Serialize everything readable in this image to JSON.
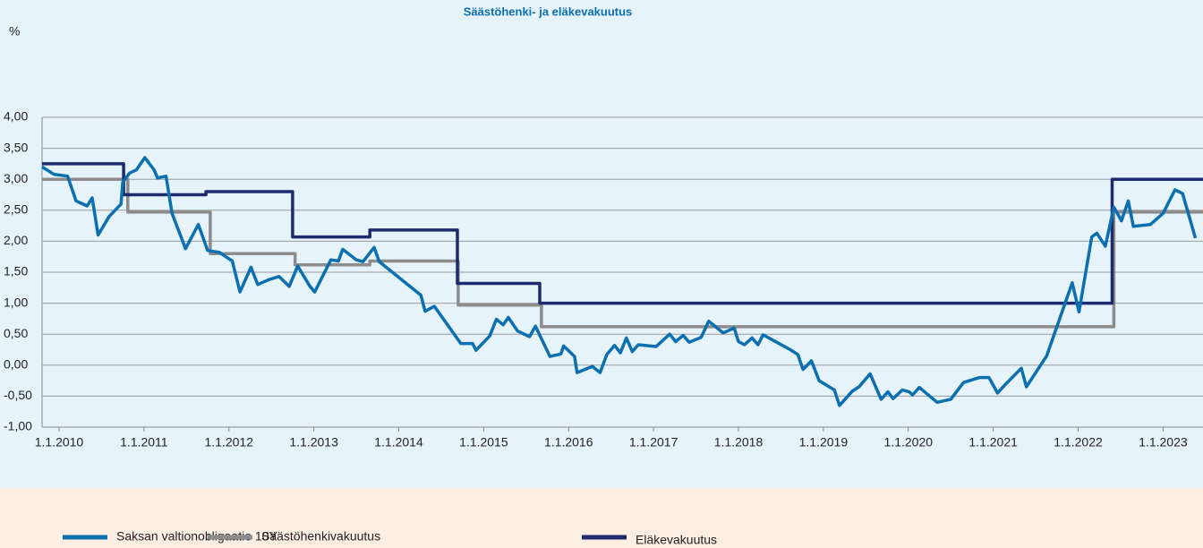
{
  "chart_data": {
    "type": "line",
    "title": "Säästöhenki- ja eläkevakuutus",
    "y_label": "%",
    "ylim": [
      -1,
      4
    ],
    "yticks": [
      {
        "value": 4,
        "label": "4,00"
      },
      {
        "value": 3.5,
        "label": "3,50"
      },
      {
        "value": 3,
        "label": "3,00"
      },
      {
        "value": 2.5,
        "label": "2,50"
      },
      {
        "value": 2,
        "label": "2,00"
      },
      {
        "value": 1.5,
        "label": "1,50"
      },
      {
        "value": 1,
        "label": "1,00"
      },
      {
        "value": 0.5,
        "label": "0,50"
      },
      {
        "value": 0,
        "label": "0,00"
      },
      {
        "value": -0.5,
        "label": "-0,50"
      },
      {
        "value": -1,
        "label": "-1,00"
      }
    ],
    "xlim": [
      2009.8,
      2023.47
    ],
    "xticks": [
      {
        "value": 2010,
        "label": "1.1.2010"
      },
      {
        "value": 2011,
        "label": "1.1.2011"
      },
      {
        "value": 2012,
        "label": "1.1.2012"
      },
      {
        "value": 2013,
        "label": "1.1.2013"
      },
      {
        "value": 2014,
        "label": "1.1.2014"
      },
      {
        "value": 2015,
        "label": "1.1.2015"
      },
      {
        "value": 2016,
        "label": "1.1.2016"
      },
      {
        "value": 2017,
        "label": "1.1.2017"
      },
      {
        "value": 2018,
        "label": "1.1.2018"
      },
      {
        "value": 2019,
        "label": "1.1.2019"
      },
      {
        "value": 2020,
        "label": "1.1.2020"
      },
      {
        "value": 2021,
        "label": "1.1.2021"
      },
      {
        "value": 2022,
        "label": "1.1.2022"
      },
      {
        "value": 2023,
        "label": "1.1.2023"
      }
    ],
    "grid": true,
    "legend": "bottom",
    "series": [
      {
        "name": "Saksan valtionobligaatio 10Y",
        "color": "#0b6fb0",
        "x": [
          2009.8,
          2009.94,
          2010.1,
          2010.2,
          2010.33,
          2010.39,
          2010.46,
          2010.59,
          2010.73,
          2010.75,
          2010.83,
          2010.91,
          2011.01,
          2011.12,
          2011.16,
          2011.26,
          2011.33,
          2011.49,
          2011.64,
          2011.75,
          2011.89,
          2012.04,
          2012.13,
          2012.26,
          2012.34,
          2012.47,
          2012.59,
          2012.71,
          2012.81,
          2012.95,
          2013.01,
          2013.2,
          2013.29,
          2013.34,
          2013.5,
          2013.58,
          2013.71,
          2013.77,
          2014.26,
          2014.31,
          2014.42,
          2014.73,
          2014.87,
          2014.91,
          2015.07,
          2015.15,
          2015.23,
          2015.29,
          2015.4,
          2015.54,
          2015.61,
          2015.78,
          2015.91,
          2015.94,
          2016.07,
          2016.1,
          2016.28,
          2016.37,
          2016.45,
          2016.54,
          2016.61,
          2016.68,
          2016.75,
          2016.82,
          2017.03,
          2017.19,
          2017.26,
          2017.35,
          2017.42,
          2017.56,
          2017.65,
          2017.82,
          2017.95,
          2018.0,
          2018.07,
          2018.16,
          2018.23,
          2018.29,
          2018.61,
          2018.7,
          2018.76,
          2018.86,
          2018.95,
          2019.13,
          2019.19,
          2019.34,
          2019.42,
          2019.55,
          2019.68,
          2019.76,
          2019.82,
          2019.93,
          2020.01,
          2020.05,
          2020.13,
          2020.34,
          2020.5,
          2020.65,
          2020.84,
          2020.95,
          2021.05,
          2021.15,
          2021.33,
          2021.39,
          2021.63,
          2021.93,
          2022.01,
          2022.16,
          2022.22,
          2022.32,
          2022.42,
          2022.51,
          2022.59,
          2022.65,
          2022.85,
          2023.0,
          2023.14,
          2023.23,
          2023.38
        ],
        "values": [
          3.2,
          3.08,
          3.05,
          2.65,
          2.57,
          2.7,
          2.1,
          2.4,
          2.6,
          2.95,
          3.1,
          3.15,
          3.35,
          3.15,
          3.02,
          3.05,
          2.45,
          1.88,
          2.27,
          1.85,
          1.82,
          1.68,
          1.18,
          1.58,
          1.3,
          1.38,
          1.43,
          1.27,
          1.6,
          1.28,
          1.18,
          1.7,
          1.68,
          1.87,
          1.7,
          1.67,
          1.9,
          1.67,
          1.13,
          0.87,
          0.95,
          0.35,
          0.35,
          0.24,
          0.47,
          0.74,
          0.65,
          0.77,
          0.55,
          0.46,
          0.63,
          0.14,
          0.18,
          0.31,
          0.14,
          -0.12,
          -0.02,
          -0.12,
          0.17,
          0.32,
          0.2,
          0.44,
          0.22,
          0.33,
          0.3,
          0.5,
          0.38,
          0.48,
          0.37,
          0.45,
          0.71,
          0.52,
          0.6,
          0.38,
          0.33,
          0.44,
          0.33,
          0.49,
          0.25,
          0.17,
          -0.07,
          0.07,
          -0.25,
          -0.4,
          -0.65,
          -0.42,
          -0.35,
          -0.14,
          -0.55,
          -0.43,
          -0.54,
          -0.4,
          -0.43,
          -0.48,
          -0.36,
          -0.6,
          -0.55,
          -0.28,
          -0.2,
          -0.2,
          -0.45,
          -0.3,
          -0.05,
          -0.35,
          0.15,
          1.33,
          0.86,
          2.07,
          2.13,
          1.92,
          2.55,
          2.33,
          2.65,
          2.24,
          2.27,
          2.45,
          2.83,
          2.77,
          2.05
        ]
      },
      {
        "name": "Säästöhenkivakuutus",
        "color": "#8c8c8c",
        "x": [
          2009.8,
          2010.81,
          2010.81,
          2011.78,
          2011.78,
          2012.78,
          2012.78,
          2013.66,
          2013.66,
          2014.7,
          2014.7,
          2015.68,
          2015.68,
          2022.42,
          2022.42,
          2023.47
        ],
        "values": [
          3.0,
          3.0,
          2.47,
          2.47,
          1.8,
          1.8,
          1.62,
          1.62,
          1.68,
          1.68,
          0.97,
          0.97,
          0.62,
          0.62,
          2.47,
          2.47
        ]
      },
      {
        "name": "Eläkevakuutus",
        "color": "#1f2a6e",
        "x": [
          2009.8,
          2010.76,
          2010.76,
          2011.73,
          2011.73,
          2012.75,
          2012.75,
          2013.66,
          2013.66,
          2014.69,
          2014.69,
          2015.66,
          2015.66,
          2022.4,
          2022.4,
          2023.47
        ],
        "values": [
          3.25,
          3.25,
          2.75,
          2.75,
          2.8,
          2.8,
          2.07,
          2.07,
          2.18,
          2.18,
          1.32,
          1.32,
          1.0,
          1.0,
          3.0,
          3.0
        ]
      }
    ]
  }
}
